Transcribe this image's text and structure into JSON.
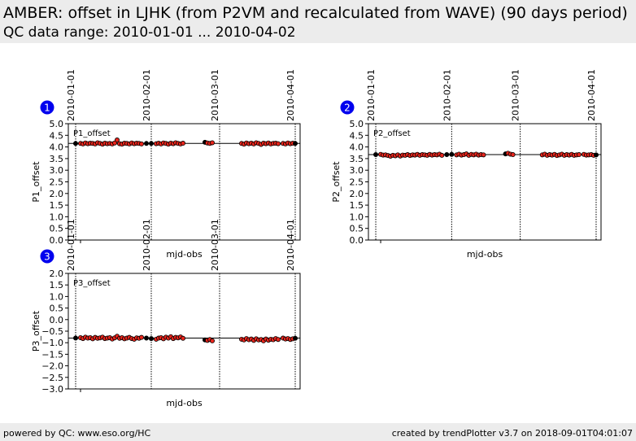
{
  "header": {
    "title": "AMBER: offset in LJHK (from P2VM and recalculated from WAVE) (90 days period)",
    "subtitle": "QC data range: 2010-01-01 ... 2010-04-02"
  },
  "footer": {
    "left": "powered by QC: www.eso.org/HC",
    "right": "created by trendPlotter v3.7 on 2018-09-01T04:01:07"
  },
  "colors": {
    "marker_fill": "#e8251c",
    "marker_edge": "#000000",
    "badge": "#0000ee",
    "background": "#ececec"
  },
  "chart_data": [
    {
      "type": "scatter",
      "badge": "1",
      "legend": "P1_offset",
      "xlabel": "mjd-obs",
      "ylabel": "P1_offset",
      "xlim": [
        -3,
        92
      ],
      "ylim": [
        0,
        5
      ],
      "yticks": [
        "0.0",
        "0.5",
        "1.0",
        "1.5",
        "2.0",
        "2.5",
        "3.0",
        "3.5",
        "4.0",
        "4.5",
        "5.0"
      ],
      "date_markers": [
        {
          "day": 0,
          "label": "2010-01-01"
        },
        {
          "day": 31,
          "label": "2010-02-01"
        },
        {
          "day": 59,
          "label": "2010-03-01"
        },
        {
          "day": 90,
          "label": "2010-04-01"
        }
      ],
      "reference_line": 4.15,
      "x": [
        0,
        2,
        3,
        4,
        5,
        6,
        7,
        8,
        9,
        10,
        11,
        12,
        13,
        14,
        15,
        16,
        17,
        18,
        19,
        20,
        21,
        22,
        23,
        24,
        25,
        26,
        27,
        29,
        31,
        33,
        34,
        35,
        36,
        37,
        38,
        39,
        40,
        41,
        42,
        43,
        44,
        53,
        54,
        55,
        56,
        68,
        69,
        70,
        71,
        72,
        73,
        74,
        75,
        76,
        77,
        78,
        79,
        80,
        81,
        82,
        83,
        85,
        86,
        87,
        88,
        89,
        90
      ],
      "y": [
        4.15,
        4.15,
        4.13,
        4.17,
        4.14,
        4.16,
        4.15,
        4.13,
        4.18,
        4.15,
        4.12,
        4.16,
        4.14,
        4.15,
        4.13,
        4.17,
        4.3,
        4.14,
        4.12,
        4.16,
        4.15,
        4.13,
        4.17,
        4.14,
        4.16,
        4.15,
        4.13,
        4.15,
        4.15,
        4.14,
        4.16,
        4.13,
        4.17,
        4.15,
        4.12,
        4.16,
        4.14,
        4.18,
        4.15,
        4.13,
        4.16,
        4.2,
        4.17,
        4.15,
        4.18,
        4.15,
        4.12,
        4.17,
        4.14,
        4.16,
        4.13,
        4.18,
        4.15,
        4.11,
        4.16,
        4.14,
        4.17,
        4.13,
        4.15,
        4.16,
        4.14,
        4.15,
        4.13,
        4.17,
        4.14,
        4.16,
        4.15
      ]
    },
    {
      "type": "scatter",
      "badge": "2",
      "legend": "P2_offset",
      "xlabel": "mjd-obs",
      "ylabel": "P2_offset",
      "xlim": [
        -3,
        92
      ],
      "ylim": [
        0,
        5
      ],
      "yticks": [
        "0.0",
        "0.5",
        "1.0",
        "1.5",
        "2.0",
        "2.5",
        "3.0",
        "3.5",
        "4.0",
        "4.5",
        "5.0"
      ],
      "date_markers": [
        {
          "day": 0,
          "label": "2010-01-01"
        },
        {
          "day": 31,
          "label": "2010-02-01"
        },
        {
          "day": 59,
          "label": "2010-03-01"
        },
        {
          "day": 90,
          "label": "2010-04-01"
        }
      ],
      "reference_line": 3.67,
      "x": [
        0,
        2,
        3,
        4,
        5,
        6,
        7,
        8,
        9,
        10,
        11,
        12,
        13,
        14,
        15,
        16,
        17,
        18,
        19,
        20,
        21,
        22,
        23,
        24,
        25,
        26,
        27,
        29,
        31,
        33,
        34,
        35,
        36,
        37,
        38,
        39,
        40,
        41,
        42,
        43,
        44,
        53,
        54,
        55,
        56,
        68,
        69,
        70,
        71,
        72,
        73,
        74,
        75,
        76,
        77,
        78,
        79,
        80,
        81,
        82,
        83,
        85,
        86,
        87,
        88,
        89,
        90
      ],
      "y": [
        3.67,
        3.68,
        3.65,
        3.66,
        3.63,
        3.6,
        3.64,
        3.62,
        3.66,
        3.61,
        3.65,
        3.64,
        3.67,
        3.63,
        3.66,
        3.65,
        3.68,
        3.64,
        3.67,
        3.66,
        3.64,
        3.68,
        3.65,
        3.67,
        3.66,
        3.69,
        3.64,
        3.67,
        3.68,
        3.66,
        3.69,
        3.65,
        3.67,
        3.7,
        3.64,
        3.68,
        3.66,
        3.69,
        3.65,
        3.67,
        3.66,
        3.7,
        3.73,
        3.69,
        3.67,
        3.66,
        3.69,
        3.64,
        3.67,
        3.65,
        3.68,
        3.63,
        3.66,
        3.69,
        3.64,
        3.67,
        3.65,
        3.68,
        3.64,
        3.66,
        3.67,
        3.68,
        3.65,
        3.66,
        3.67,
        3.64,
        3.66
      ]
    },
    {
      "type": "scatter",
      "badge": "3",
      "legend": "P3_offset",
      "xlabel": "mjd-obs",
      "ylabel": "P3_offset",
      "xlim": [
        -3,
        92
      ],
      "ylim": [
        -3,
        2
      ],
      "yticks": [
        "−3.0",
        "−2.5",
        "−2.0",
        "−1.5",
        "−1.0",
        "−0.5",
        "0.0",
        "0.5",
        "1.0",
        "1.5",
        "2.0"
      ],
      "date_markers": [
        {
          "day": 0,
          "label": "2010-01-01"
        },
        {
          "day": 31,
          "label": "2010-02-01"
        },
        {
          "day": 59,
          "label": "2010-03-01"
        },
        {
          "day": 90,
          "label": "2010-04-01"
        }
      ],
      "reference_line": -0.8,
      "x": [
        0,
        2,
        3,
        4,
        5,
        6,
        7,
        8,
        9,
        10,
        11,
        12,
        13,
        14,
        15,
        16,
        17,
        18,
        19,
        20,
        21,
        22,
        23,
        24,
        25,
        26,
        27,
        29,
        31,
        33,
        34,
        35,
        36,
        37,
        38,
        39,
        40,
        41,
        42,
        43,
        44,
        53,
        54,
        55,
        56,
        68,
        69,
        70,
        71,
        72,
        73,
        74,
        75,
        76,
        77,
        78,
        79,
        80,
        81,
        82,
        83,
        85,
        86,
        87,
        88,
        89,
        90
      ],
      "y": [
        -0.8,
        -0.78,
        -0.82,
        -0.76,
        -0.8,
        -0.78,
        -0.83,
        -0.77,
        -0.81,
        -0.79,
        -0.76,
        -0.82,
        -0.8,
        -0.78,
        -0.84,
        -0.79,
        -0.72,
        -0.81,
        -0.78,
        -0.83,
        -0.8,
        -0.77,
        -0.82,
        -0.85,
        -0.79,
        -0.81,
        -0.77,
        -0.8,
        -0.82,
        -0.85,
        -0.8,
        -0.78,
        -0.83,
        -0.76,
        -0.8,
        -0.74,
        -0.82,
        -0.77,
        -0.79,
        -0.75,
        -0.81,
        -0.88,
        -0.9,
        -0.86,
        -0.92,
        -0.85,
        -0.88,
        -0.82,
        -0.87,
        -0.84,
        -0.9,
        -0.83,
        -0.88,
        -0.86,
        -0.92,
        -0.84,
        -0.89,
        -0.85,
        -0.87,
        -0.82,
        -0.86,
        -0.8,
        -0.84,
        -0.82,
        -0.86,
        -0.83,
        -0.81
      ]
    }
  ]
}
